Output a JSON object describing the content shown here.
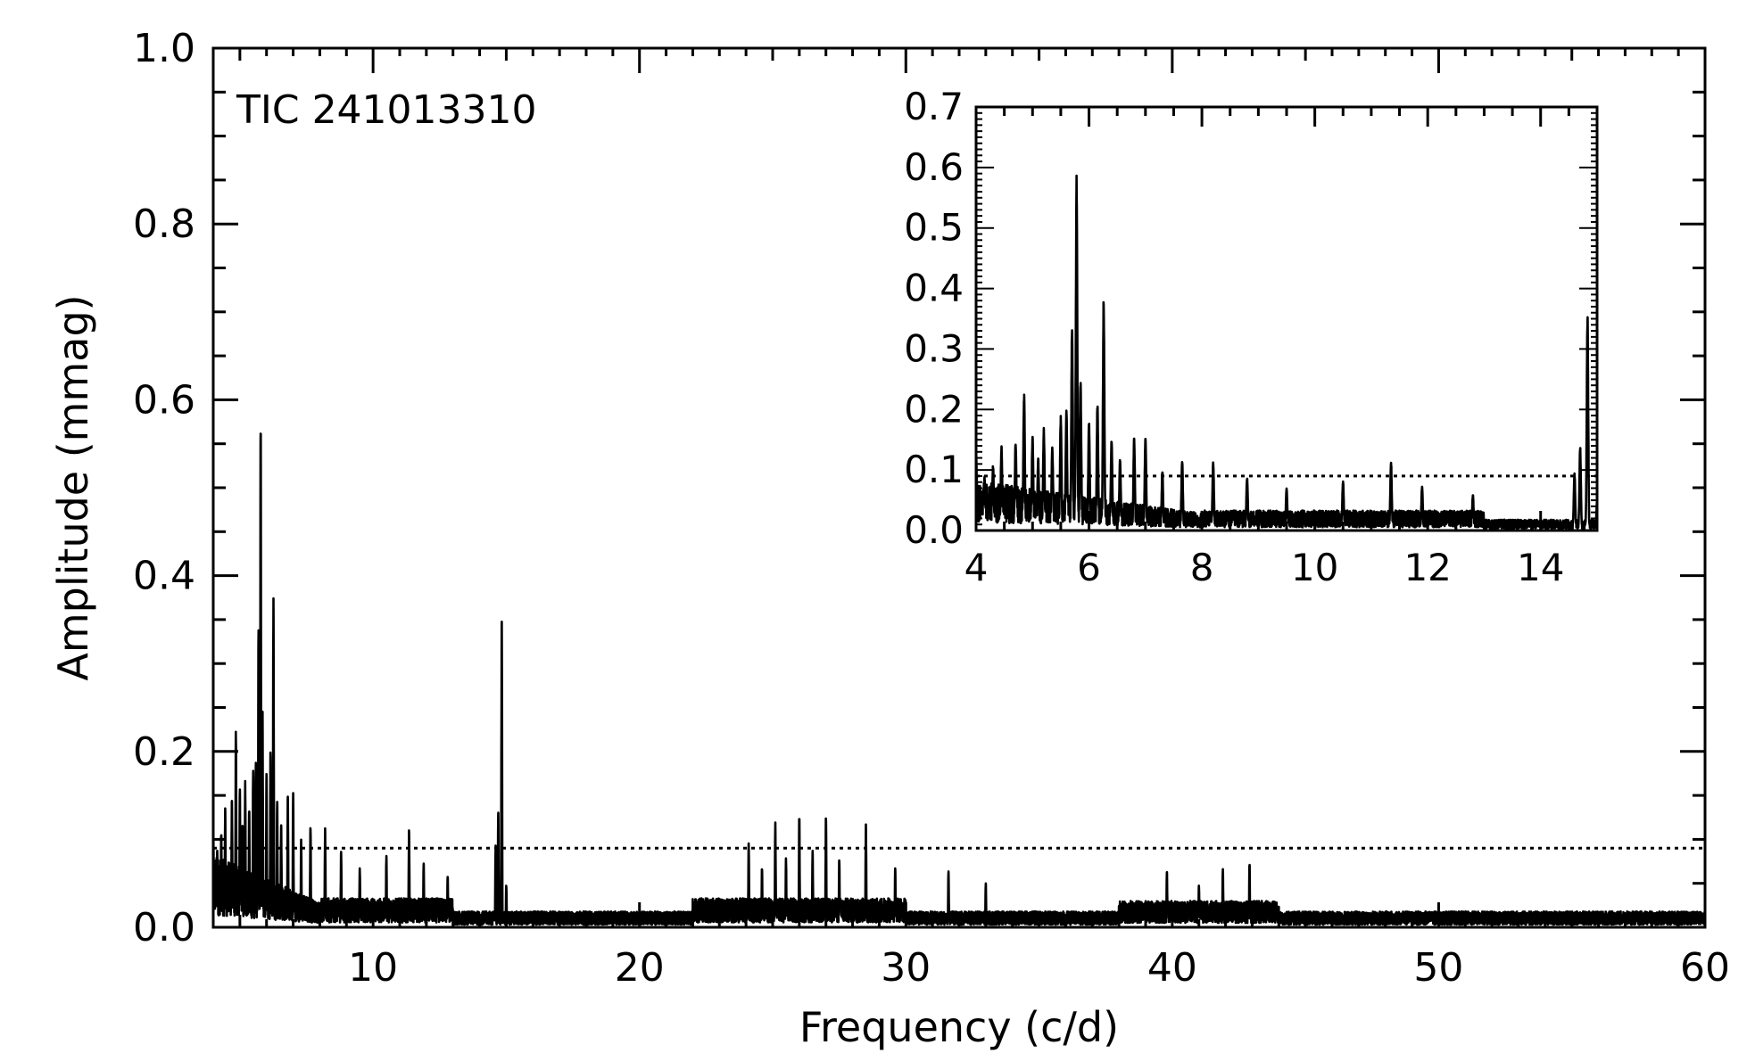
{
  "chart_data": [
    {
      "type": "line",
      "role": "main",
      "annotation": "TIC 241013310",
      "xlabel": "Frequency (c/d)",
      "ylabel": "Amplitude (mmag)",
      "xlim": [
        4,
        60
      ],
      "ylim": [
        0,
        1.0
      ],
      "x_ticks": [
        "10",
        "20",
        "30",
        "40",
        "50",
        "60"
      ],
      "y_ticks": [
        "0.0",
        "0.2",
        "0.4",
        "0.6",
        "0.8",
        "1.0"
      ],
      "threshold": 0.09,
      "grid": false,
      "noise_floor": 0.012,
      "peaks": [
        {
          "x": 4.0,
          "y": 0.13
        },
        {
          "x": 4.15,
          "y": 0.09
        },
        {
          "x": 4.3,
          "y": 0.11
        },
        {
          "x": 4.45,
          "y": 0.14
        },
        {
          "x": 4.7,
          "y": 0.15
        },
        {
          "x": 4.85,
          "y": 0.23
        },
        {
          "x": 5.0,
          "y": 0.16
        },
        {
          "x": 5.1,
          "y": 0.12
        },
        {
          "x": 5.2,
          "y": 0.17
        },
        {
          "x": 5.35,
          "y": 0.14
        },
        {
          "x": 5.5,
          "y": 0.19
        },
        {
          "x": 5.6,
          "y": 0.2
        },
        {
          "x": 5.7,
          "y": 0.34
        },
        {
          "x": 5.78,
          "y": 0.59
        },
        {
          "x": 5.85,
          "y": 0.25
        },
        {
          "x": 6.0,
          "y": 0.18
        },
        {
          "x": 6.15,
          "y": 0.21
        },
        {
          "x": 6.26,
          "y": 0.385
        },
        {
          "x": 6.4,
          "y": 0.15
        },
        {
          "x": 6.55,
          "y": 0.12
        },
        {
          "x": 6.8,
          "y": 0.155
        },
        {
          "x": 7.0,
          "y": 0.157
        },
        {
          "x": 7.3,
          "y": 0.1
        },
        {
          "x": 7.65,
          "y": 0.12
        },
        {
          "x": 8.2,
          "y": 0.115
        },
        {
          "x": 8.8,
          "y": 0.09
        },
        {
          "x": 9.5,
          "y": 0.07
        },
        {
          "x": 10.5,
          "y": 0.085
        },
        {
          "x": 11.35,
          "y": 0.115
        },
        {
          "x": 11.9,
          "y": 0.075
        },
        {
          "x": 12.8,
          "y": 0.06
        },
        {
          "x": 14.6,
          "y": 0.095
        },
        {
          "x": 14.7,
          "y": 0.14
        },
        {
          "x": 14.83,
          "y": 0.36
        },
        {
          "x": 15.0,
          "y": 0.05
        },
        {
          "x": 24.1,
          "y": 0.1
        },
        {
          "x": 24.6,
          "y": 0.07
        },
        {
          "x": 25.1,
          "y": 0.12
        },
        {
          "x": 25.5,
          "y": 0.08
        },
        {
          "x": 26.0,
          "y": 0.13
        },
        {
          "x": 26.5,
          "y": 0.09
        },
        {
          "x": 27.0,
          "y": 0.13
        },
        {
          "x": 27.5,
          "y": 0.08
        },
        {
          "x": 28.5,
          "y": 0.12
        },
        {
          "x": 29.6,
          "y": 0.07
        },
        {
          "x": 31.6,
          "y": 0.065
        },
        {
          "x": 33.0,
          "y": 0.05
        },
        {
          "x": 39.8,
          "y": 0.065
        },
        {
          "x": 41.0,
          "y": 0.05
        },
        {
          "x": 41.9,
          "y": 0.07
        },
        {
          "x": 42.9,
          "y": 0.075
        }
      ]
    },
    {
      "type": "line",
      "role": "inset",
      "xlim": [
        4,
        15
      ],
      "ylim": [
        0,
        0.7
      ],
      "x_ticks": [
        "4",
        "6",
        "8",
        "10",
        "12",
        "14"
      ],
      "y_ticks": [
        "0.0",
        "0.1",
        "0.2",
        "0.3",
        "0.4",
        "0.5",
        "0.6",
        "0.7"
      ],
      "threshold": 0.09,
      "grid": false
    }
  ]
}
